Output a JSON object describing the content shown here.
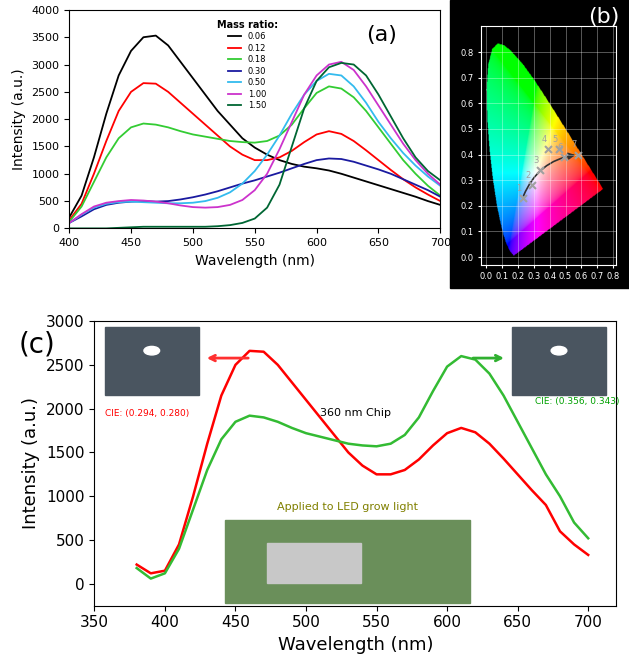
{
  "chart_data": [
    {
      "type": "line",
      "panel_label": "(a)",
      "x_label": "Wavelength (nm)",
      "y_label": "Intensity (a.u.)",
      "legend_title": "Mass ratio:",
      "legend": "upper center",
      "x": [
        400,
        410,
        420,
        430,
        440,
        450,
        460,
        470,
        480,
        490,
        500,
        510,
        520,
        530,
        540,
        550,
        560,
        570,
        580,
        590,
        600,
        610,
        620,
        630,
        640,
        650,
        660,
        670,
        680,
        690,
        700
      ],
      "series": [
        {
          "name": "0.06",
          "color": "#000000",
          "values": [
            200,
            600,
            1300,
            2100,
            2800,
            3250,
            3500,
            3530,
            3350,
            3050,
            2750,
            2450,
            2150,
            1900,
            1650,
            1480,
            1350,
            1250,
            1180,
            1130,
            1100,
            1060,
            1000,
            930,
            860,
            790,
            720,
            650,
            580,
            500,
            430
          ]
        },
        {
          "name": "0.12",
          "color": "#ff0000",
          "values": [
            150,
            450,
            1000,
            1600,
            2150,
            2500,
            2660,
            2650,
            2500,
            2300,
            2100,
            1900,
            1700,
            1500,
            1350,
            1250,
            1250,
            1300,
            1420,
            1580,
            1720,
            1780,
            1730,
            1600,
            1430,
            1250,
            1070,
            900,
            750,
            620,
            500
          ]
        },
        {
          "name": "0.18",
          "color": "#33cc33",
          "values": [
            120,
            400,
            850,
            1300,
            1650,
            1850,
            1920,
            1900,
            1850,
            1780,
            1720,
            1680,
            1640,
            1600,
            1580,
            1570,
            1600,
            1700,
            1900,
            2200,
            2480,
            2600,
            2560,
            2400,
            2150,
            1850,
            1550,
            1250,
            1000,
            780,
            600
          ]
        },
        {
          "name": "0.30",
          "color": "#1a1aa0",
          "values": [
            100,
            220,
            350,
            430,
            470,
            490,
            500,
            490,
            500,
            530,
            570,
            620,
            680,
            750,
            820,
            880,
            950,
            1020,
            1100,
            1180,
            1250,
            1280,
            1270,
            1220,
            1150,
            1080,
            1000,
            900,
            800,
            700,
            580
          ]
        },
        {
          "name": "0.50",
          "color": "#33bbee",
          "values": [
            100,
            250,
            380,
            450,
            480,
            490,
            480,
            470,
            460,
            460,
            470,
            500,
            560,
            660,
            820,
            1050,
            1350,
            1700,
            2100,
            2450,
            2700,
            2830,
            2800,
            2600,
            2300,
            1950,
            1650,
            1380,
            1150,
            950,
            780
          ]
        },
        {
          "name": "1.00",
          "color": "#cc33cc",
          "values": [
            100,
            260,
            400,
            470,
            500,
            520,
            510,
            490,
            460,
            420,
            390,
            380,
            390,
            430,
            520,
            700,
            1000,
            1450,
            1950,
            2450,
            2800,
            3000,
            3050,
            2900,
            2600,
            2250,
            1900,
            1550,
            1250,
            1000,
            800
          ]
        },
        {
          "name": "1.50",
          "color": "#006633",
          "values": [
            0,
            0,
            0,
            0,
            10,
            20,
            30,
            30,
            30,
            30,
            30,
            30,
            40,
            60,
            100,
            180,
            380,
            800,
            1500,
            2200,
            2700,
            2950,
            3030,
            3000,
            2800,
            2450,
            2050,
            1650,
            1300,
            1050,
            880
          ]
        }
      ],
      "xlim": [
        400,
        700
      ],
      "xticks": [
        400,
        450,
        500,
        550,
        600,
        650,
        700
      ],
      "ylim": [
        0,
        4000
      ],
      "yticks": [
        0,
        500,
        1000,
        1500,
        2000,
        2500,
        3000,
        3500,
        4000
      ]
    },
    {
      "type": "scatter",
      "panel_label": "(b)",
      "x": [
        0.23,
        0.29,
        0.34,
        0.39,
        0.46,
        0.49,
        0.58
      ],
      "values": [
        0.23,
        0.28,
        0.34,
        0.42,
        0.42,
        0.39,
        0.4
      ],
      "labels": [
        "1",
        "2",
        "3",
        "4",
        "5",
        "6",
        "7"
      ],
      "marker": "x",
      "color": "#a0a0a0",
      "xlim": [
        -0.03,
        0.82
      ],
      "xticks": [
        0.0,
        0.1,
        0.2,
        0.3,
        0.4,
        0.5,
        0.6,
        0.7,
        0.8
      ],
      "ylim": [
        -0.03,
        0.9
      ],
      "yticks": [
        0.0,
        0.1,
        0.2,
        0.3,
        0.4,
        0.5,
        0.6,
        0.7,
        0.8
      ],
      "grid": true
    },
    {
      "type": "line",
      "panel_label": "(c)",
      "x_label": "Wavelength (nm)",
      "y_label": "Intensity (a.u.)",
      "annotations": [
        {
          "text": "360 nm Chip",
          "color": "#000000"
        },
        {
          "text": "CIE: (0.294, 0.280)",
          "color": "#ff0000"
        },
        {
          "text": "CIE: (0.356, 0.343)",
          "color": "#00a000"
        },
        {
          "text": "Applied to LED grow light",
          "color": "#808000"
        }
      ],
      "x": [
        380,
        390,
        400,
        410,
        420,
        430,
        440,
        450,
        460,
        470,
        480,
        490,
        500,
        510,
        520,
        530,
        540,
        550,
        560,
        570,
        580,
        590,
        600,
        610,
        620,
        630,
        640,
        650,
        660,
        670,
        680,
        690,
        700
      ],
      "series": [
        {
          "color": "#ff0000",
          "values": [
            220,
            120,
            150,
            450,
            1000,
            1600,
            2150,
            2500,
            2660,
            2650,
            2500,
            2300,
            2100,
            1900,
            1700,
            1500,
            1350,
            1250,
            1250,
            1300,
            1420,
            1580,
            1720,
            1780,
            1730,
            1600,
            1430,
            1250,
            1070,
            900,
            600,
            450,
            330
          ]
        },
        {
          "color": "#33bb33",
          "values": [
            180,
            60,
            120,
            400,
            850,
            1300,
            1650,
            1850,
            1920,
            1900,
            1850,
            1780,
            1720,
            1680,
            1640,
            1600,
            1580,
            1570,
            1600,
            1700,
            1900,
            2200,
            2480,
            2600,
            2560,
            2400,
            2150,
            1850,
            1550,
            1250,
            1000,
            700,
            520
          ]
        }
      ],
      "xlim": [
        350,
        720
      ],
      "xticks": [
        350,
        400,
        450,
        500,
        550,
        600,
        650,
        700
      ],
      "ylim": [
        -250,
        3000
      ],
      "yticks": [
        0,
        500,
        1000,
        1500,
        2000,
        2500,
        3000
      ]
    }
  ]
}
